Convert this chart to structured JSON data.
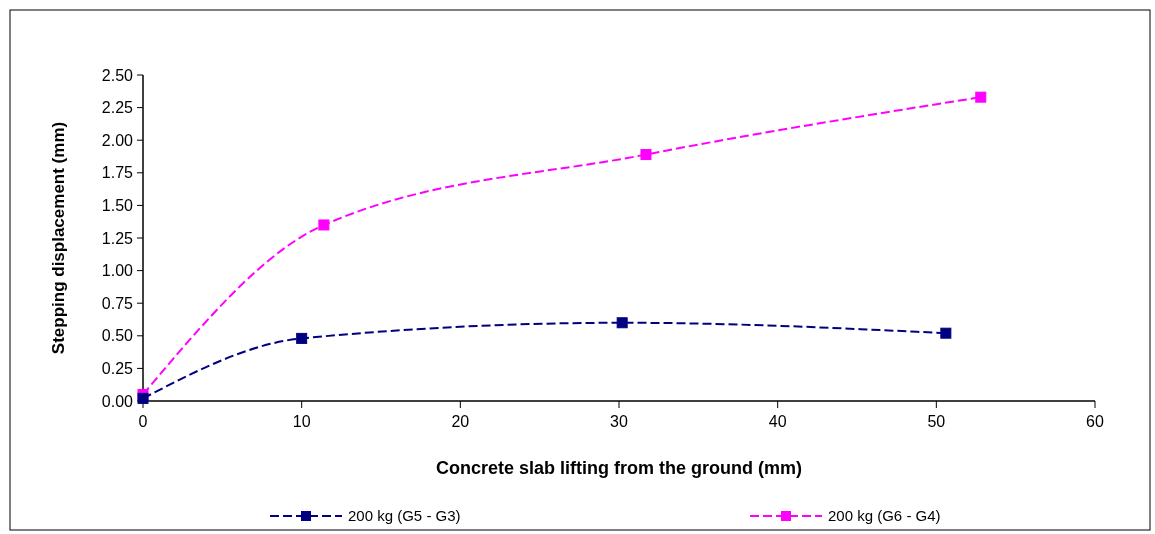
{
  "chart_data": {
    "type": "line",
    "xlabel": "Concrete slab lifting from the ground (mm)",
    "ylabel": "Stepping displacement (mm)",
    "series": [
      {
        "name": "200 kg (G5 - G3)",
        "color": "#000080",
        "x": [
          0,
          10,
          30.2,
          50.6
        ],
        "values": [
          0.02,
          0.48,
          0.6,
          0.52
        ]
      },
      {
        "name": "200 kg (G6 - G4)",
        "color": "#ff00ff",
        "x": [
          0,
          11.4,
          31.7,
          52.8
        ],
        "values": [
          0.05,
          1.35,
          1.89,
          2.33
        ]
      }
    ],
    "xlim": [
      0,
      60
    ],
    "xticks": [
      0,
      10,
      20,
      30,
      40,
      50,
      60
    ],
    "ylim": [
      0,
      2.5
    ],
    "yticks": [
      {
        "value": 0,
        "label": "0.00"
      },
      {
        "value": 0.25,
        "label": "0.25"
      },
      {
        "value": 0.5,
        "label": "0.50"
      },
      {
        "value": 0.75,
        "label": "0.75"
      },
      {
        "value": 1,
        "label": "1.00"
      },
      {
        "value": 1.25,
        "label": "1.25"
      },
      {
        "value": 1.5,
        "label": "1.50"
      },
      {
        "value": 1.75,
        "label": "1.75"
      },
      {
        "value": 2,
        "label": "2.00"
      },
      {
        "value": 2.25,
        "label": "2.25"
      },
      {
        "value": 2.5,
        "label": "2.50"
      }
    ],
    "grid": false,
    "legend": "bottom",
    "marker": "square",
    "line_style": "dashed"
  }
}
